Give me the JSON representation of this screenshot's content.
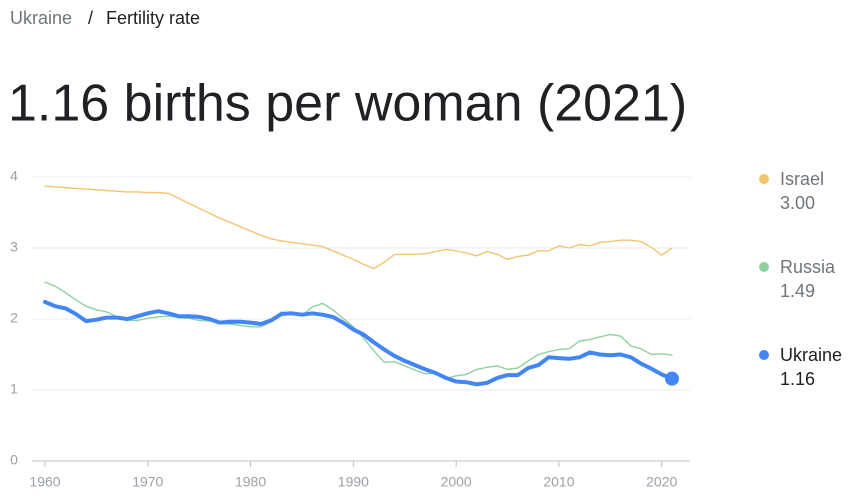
{
  "breadcrumb": {
    "items": [
      "Ukraine",
      "Fertility rate"
    ],
    "separator": "/"
  },
  "chart_data": {
    "type": "line",
    "title": "1.16 births per woman (2021)",
    "x": [
      1960,
      1961,
      1962,
      1963,
      1964,
      1965,
      1966,
      1967,
      1968,
      1969,
      1970,
      1971,
      1972,
      1973,
      1974,
      1975,
      1976,
      1977,
      1978,
      1979,
      1980,
      1981,
      1982,
      1983,
      1984,
      1985,
      1986,
      1987,
      1988,
      1989,
      1990,
      1991,
      1992,
      1993,
      1994,
      1995,
      1996,
      1997,
      1998,
      1999,
      2000,
      2001,
      2002,
      2003,
      2004,
      2005,
      2006,
      2007,
      2008,
      2009,
      2010,
      2011,
      2012,
      2013,
      2014,
      2015,
      2016,
      2017,
      2018,
      2019,
      2020,
      2021
    ],
    "series": [
      {
        "name": "Israel",
        "color": "#f2c46d",
        "value_label": "3.00",
        "values": [
          3.87,
          3.86,
          3.85,
          3.84,
          3.83,
          3.82,
          3.81,
          3.8,
          3.79,
          3.79,
          3.78,
          3.78,
          3.77,
          3.7,
          3.63,
          3.56,
          3.49,
          3.42,
          3.36,
          3.3,
          3.24,
          3.18,
          3.13,
          3.1,
          3.08,
          3.06,
          3.04,
          3.02,
          2.96,
          2.9,
          2.84,
          2.77,
          2.71,
          2.8,
          2.91,
          2.91,
          2.91,
          2.92,
          2.95,
          2.98,
          2.96,
          2.93,
          2.89,
          2.95,
          2.91,
          2.84,
          2.88,
          2.9,
          2.96,
          2.96,
          3.03,
          3.0,
          3.05,
          3.03,
          3.08,
          3.09,
          3.11,
          3.11,
          3.09,
          3.01,
          2.9,
          3.0
        ]
      },
      {
        "name": "Russia",
        "color": "#8fd19e",
        "value_label": "1.49",
        "values": [
          2.52,
          2.46,
          2.37,
          2.27,
          2.18,
          2.13,
          2.1,
          2.03,
          1.98,
          1.98,
          2.01,
          2.03,
          2.04,
          2.02,
          2.01,
          1.98,
          1.97,
          1.94,
          1.93,
          1.91,
          1.89,
          1.89,
          1.96,
          2.1,
          2.06,
          2.05,
          2.17,
          2.22,
          2.13,
          2.01,
          1.89,
          1.73,
          1.55,
          1.39,
          1.4,
          1.34,
          1.28,
          1.23,
          1.24,
          1.16,
          1.2,
          1.22,
          1.29,
          1.32,
          1.34,
          1.29,
          1.31,
          1.41,
          1.5,
          1.54,
          1.57,
          1.58,
          1.69,
          1.71,
          1.75,
          1.78,
          1.76,
          1.62,
          1.58,
          1.5,
          1.51,
          1.49
        ]
      },
      {
        "name": "Ukraine",
        "color": "#4285f4",
        "value_label": "1.16",
        "values": [
          2.24,
          2.18,
          2.15,
          2.07,
          1.97,
          1.99,
          2.02,
          2.02,
          2.0,
          2.04,
          2.08,
          2.11,
          2.08,
          2.04,
          2.04,
          2.03,
          2.0,
          1.95,
          1.96,
          1.96,
          1.95,
          1.93,
          1.98,
          2.07,
          2.08,
          2.06,
          2.08,
          2.06,
          2.03,
          1.95,
          1.85,
          1.78,
          1.67,
          1.57,
          1.48,
          1.41,
          1.35,
          1.29,
          1.24,
          1.17,
          1.12,
          1.11,
          1.08,
          1.1,
          1.17,
          1.21,
          1.21,
          1.31,
          1.35,
          1.46,
          1.45,
          1.44,
          1.46,
          1.53,
          1.5,
          1.49,
          1.5,
          1.46,
          1.37,
          1.3,
          1.22,
          1.16
        ]
      }
    ],
    "xlim": [
      1960,
      2021
    ],
    "xticks": [
      1960,
      1970,
      1980,
      1990,
      2000,
      2010,
      2020
    ],
    "ylim": [
      0,
      4
    ],
    "yticks": [
      0,
      1,
      2,
      3,
      4
    ],
    "grid": true,
    "legend": "right"
  }
}
